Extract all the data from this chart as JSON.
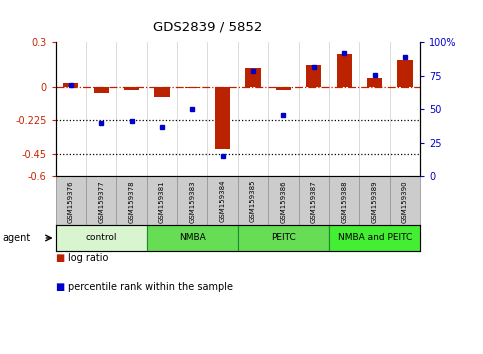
{
  "title": "GDS2839 / 5852",
  "samples": [
    "GSM159376",
    "GSM159377",
    "GSM159378",
    "GSM159381",
    "GSM159383",
    "GSM159384",
    "GSM159385",
    "GSM159386",
    "GSM159387",
    "GSM159388",
    "GSM159389",
    "GSM159390"
  ],
  "log_ratio": [
    0.03,
    -0.04,
    -0.02,
    -0.07,
    -0.01,
    -0.42,
    0.13,
    -0.02,
    0.15,
    0.22,
    0.06,
    0.18
  ],
  "percentile_rank": [
    68,
    40,
    41,
    37,
    50,
    15,
    79,
    46,
    82,
    92,
    76,
    89
  ],
  "ylim_left": [
    -0.6,
    0.3
  ],
  "ylim_right": [
    0,
    100
  ],
  "yticks_left": [
    0.3,
    0.0,
    -0.225,
    -0.45,
    -0.6
  ],
  "yticks_right": [
    100,
    75,
    50,
    25,
    0
  ],
  "hlines_dotted": [
    -0.225,
    -0.45
  ],
  "hline_dashed": 0.0,
  "agents": [
    {
      "label": "control",
      "start": 0,
      "end": 3,
      "color": "#d8f5d0"
    },
    {
      "label": "NMBA",
      "start": 3,
      "end": 6,
      "color": "#66dd55"
    },
    {
      "label": "PEITC",
      "start": 6,
      "end": 9,
      "color": "#66dd55"
    },
    {
      "label": "NMBA and PEITC",
      "start": 9,
      "end": 12,
      "color": "#44ee33"
    }
  ],
  "bar_color_red": "#bb2200",
  "dot_color_blue": "#0000cc",
  "bg_color": "#ffffff",
  "plot_bg": "#ffffff",
  "axis_label_color_left": "#cc2200",
  "axis_label_color_right": "#0000cc",
  "legend_items": [
    "log ratio",
    "percentile rank within the sample"
  ],
  "sample_box_color": "#cccccc",
  "sample_box_edge": "#999999"
}
